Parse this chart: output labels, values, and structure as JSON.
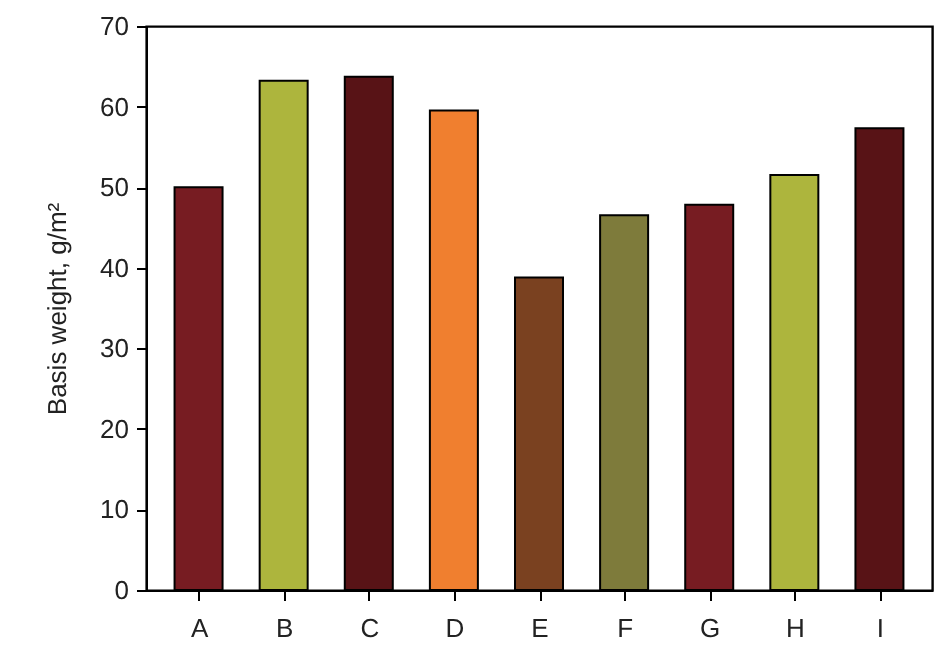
{
  "chart_data": {
    "type": "bar",
    "ylabel": "Basis weight, g/m²",
    "categories": [
      "A",
      "B",
      "C",
      "D",
      "E",
      "F",
      "G",
      "H",
      "I"
    ],
    "values": [
      50,
      63.2,
      63.7,
      59.5,
      38.8,
      46.5,
      47.8,
      51.5,
      57.3
    ],
    "colors": [
      "#771c22",
      "#adb53d",
      "#581316",
      "#f07f2f",
      "#7a4120",
      "#7e7b3b",
      "#771c22",
      "#adb53d",
      "#581316"
    ],
    "ylim": [
      0,
      70
    ],
    "yticks": [
      0,
      10,
      20,
      30,
      40,
      50,
      60,
      70
    ],
    "grid": false
  }
}
